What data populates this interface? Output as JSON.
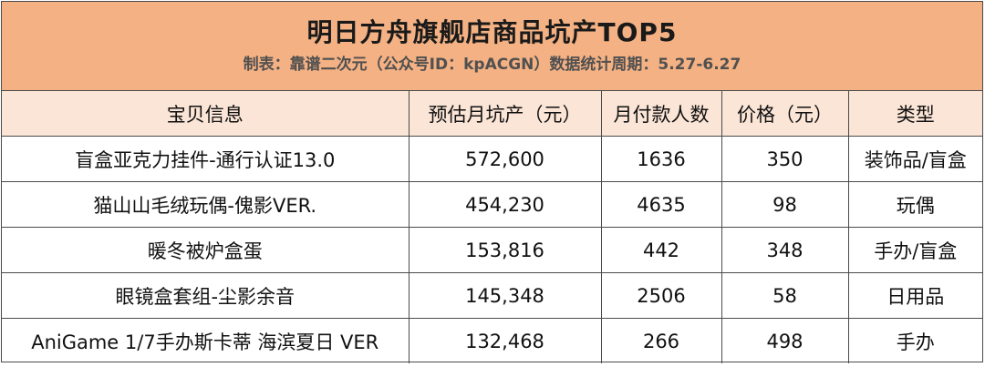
{
  "title": "明日方舟旗舰店商品坑产TOP5",
  "subtitle": "制表：靠谱二次元（公众号ID：kpACGN）数据统计周期：5.27-6.27",
  "colors": {
    "title_bg": "#f4b183",
    "header_bg": "#fbe5d6",
    "border": "#4a4a4a"
  },
  "chart_data": {
    "type": "table",
    "title": "明日方舟旗舰店商品坑产TOP5",
    "subtitle": "制表：靠谱二次元（公众号ID：kpACGN）数据统计周期：5.27-6.27",
    "columns": [
      "宝贝信息",
      "预估月坑产（元）",
      "月付款人数",
      "价格（元）",
      "类型"
    ],
    "rows": [
      [
        "盲盒亚克力挂件-通行认证13.0",
        "572,600",
        "1636",
        "350",
        "装饰品/盲盒"
      ],
      [
        "猫山山毛绒玩偶-傀影VER.",
        "454,230",
        "4635",
        "98",
        "玩偶"
      ],
      [
        "暖冬被炉盒蛋",
        "153,816",
        "442",
        "348",
        "手办/盲盒"
      ],
      [
        "眼镜盒套组-尘影余音",
        "145,348",
        "2506",
        "58",
        "日用品"
      ],
      [
        "AniGame 1/7手办斯卡蒂 海滨夏日 VER",
        "132,468",
        "266",
        "498",
        "手办"
      ]
    ]
  }
}
